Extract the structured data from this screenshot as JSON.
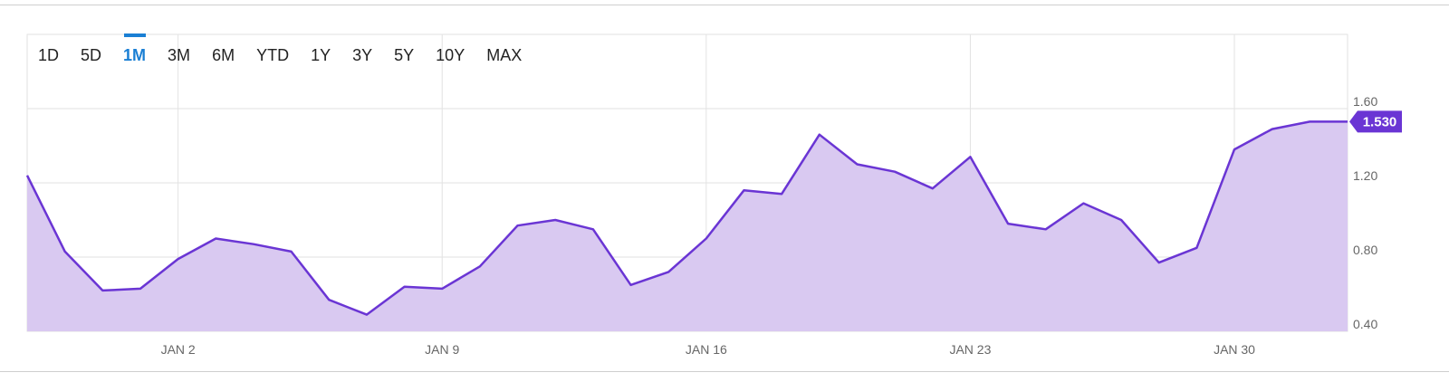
{
  "range_selector": {
    "options": [
      "1D",
      "5D",
      "1M",
      "3M",
      "6M",
      "YTD",
      "1Y",
      "3Y",
      "5Y",
      "10Y",
      "MAX"
    ],
    "selected": "1M"
  },
  "colors": {
    "line": "#6a35d4",
    "fill": "#d9c9f1",
    "grid": "#e2e2e2",
    "active_tab": "#1a7fd4",
    "badge": "#6a35d4"
  },
  "chart_data": {
    "type": "area",
    "title": "",
    "xlabel": "",
    "ylabel": "",
    "x_tick_labels": [
      "JAN 2",
      "JAN 9",
      "JAN 16",
      "JAN 23",
      "JAN 30"
    ],
    "y_tick_labels": [
      "1.60",
      "1.20",
      "0.80",
      "0.40"
    ],
    "ylim": [
      0.4,
      1.6
    ],
    "grid": true,
    "last_value_label": "1.530",
    "series": [
      {
        "x": [
          "Dec 29",
          "Dec 30",
          "Dec 31",
          "Jan 1",
          "Jan 2",
          "Jan 3",
          "Jan 4",
          "Jan 5",
          "Jan 6",
          "Jan 7",
          "Jan 8",
          "Jan 9",
          "Jan 10",
          "Jan 11",
          "Jan 12",
          "Jan 13",
          "Jan 14",
          "Jan 15",
          "Jan 16",
          "Jan 17",
          "Jan 18",
          "Jan 19",
          "Jan 20",
          "Jan 21",
          "Jan 22",
          "Jan 23",
          "Jan 24",
          "Jan 25",
          "Jan 26",
          "Jan 27",
          "Jan 28",
          "Jan 29",
          "Jan 30",
          "Jan 31",
          "Feb 1",
          "Feb 2"
        ],
        "values": [
          1.24,
          0.83,
          0.62,
          0.63,
          0.79,
          0.9,
          0.87,
          0.83,
          0.57,
          0.49,
          0.64,
          0.63,
          0.75,
          0.97,
          1.0,
          0.95,
          0.65,
          0.72,
          0.9,
          1.16,
          1.14,
          1.46,
          1.3,
          1.26,
          1.17,
          1.34,
          0.98,
          0.95,
          1.09,
          1.0,
          0.77,
          0.85,
          1.38,
          1.49,
          1.53,
          1.53
        ]
      }
    ]
  }
}
